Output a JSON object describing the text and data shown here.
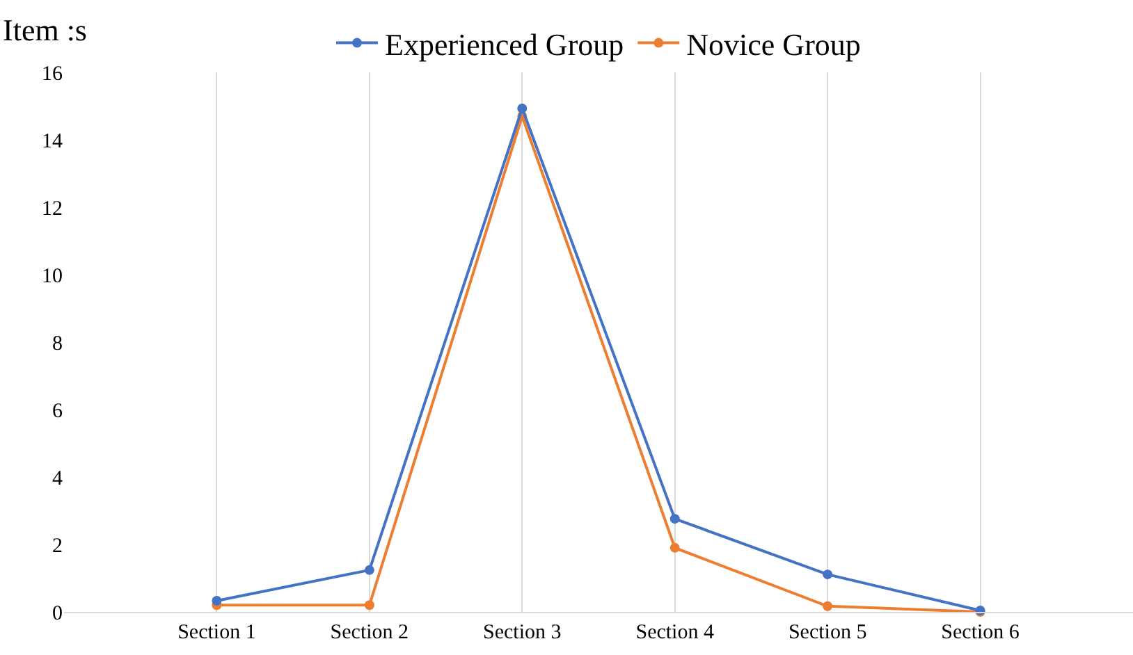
{
  "chart_data": {
    "type": "line",
    "ylabel": "Item :s",
    "categories": [
      "Section 1",
      "Section 2",
      "Section 3",
      "Section 4",
      "Section 5",
      "Section 6"
    ],
    "series": [
      {
        "name": "Experienced Group",
        "color": "#4472c4",
        "values": [
          0.33,
          1.24,
          14.93,
          2.76,
          1.11,
          0.04
        ]
      },
      {
        "name": "Novice Group",
        "color": "#ed7d31",
        "values": [
          0.2,
          0.2,
          14.7,
          1.9,
          0.17,
          0
        ]
      }
    ],
    "ylim": [
      0,
      16
    ],
    "yticks": [
      0,
      2,
      4,
      6,
      8,
      10,
      12,
      14,
      16
    ],
    "grid": "x",
    "legend": "top",
    "marker": "circle",
    "line_style": "solid"
  }
}
